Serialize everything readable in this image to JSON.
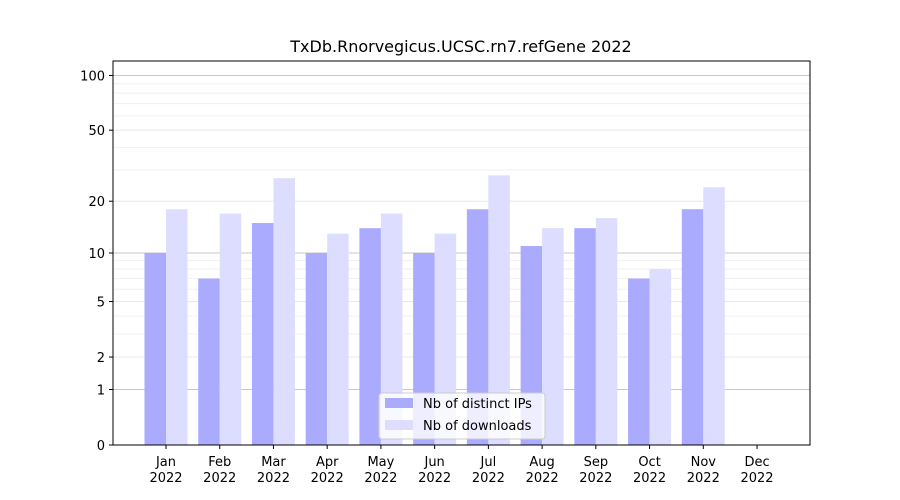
{
  "chart_data": {
    "type": "bar",
    "title": "TxDb.Rnorvegicus.UCSC.rn7.refGene 2022",
    "xlabel": "",
    "ylabel": "",
    "yscale": "log(1+y)",
    "ylim": [
      0,
      120
    ],
    "yticks": [
      0,
      1,
      2,
      5,
      10,
      20,
      50,
      100
    ],
    "grid": true,
    "legend_position": "lower-center",
    "categories": [
      {
        "month": "Jan",
        "year": "2022"
      },
      {
        "month": "Feb",
        "year": "2022"
      },
      {
        "month": "Mar",
        "year": "2022"
      },
      {
        "month": "Apr",
        "year": "2022"
      },
      {
        "month": "May",
        "year": "2022"
      },
      {
        "month": "Jun",
        "year": "2022"
      },
      {
        "month": "Jul",
        "year": "2022"
      },
      {
        "month": "Aug",
        "year": "2022"
      },
      {
        "month": "Sep",
        "year": "2022"
      },
      {
        "month": "Oct",
        "year": "2022"
      },
      {
        "month": "Nov",
        "year": "2022"
      },
      {
        "month": "Dec",
        "year": "2022"
      }
    ],
    "series": [
      {
        "name": "Nb of distinct IPs",
        "color": "#aaaaff",
        "values": [
          10,
          7,
          15,
          10,
          14,
          10,
          18,
          11,
          14,
          7,
          18,
          0
        ]
      },
      {
        "name": "Nb of downloads",
        "color": "#ddddff",
        "values": [
          18,
          17,
          27,
          13,
          17,
          13,
          28,
          14,
          16,
          8,
          24,
          0
        ]
      }
    ]
  }
}
